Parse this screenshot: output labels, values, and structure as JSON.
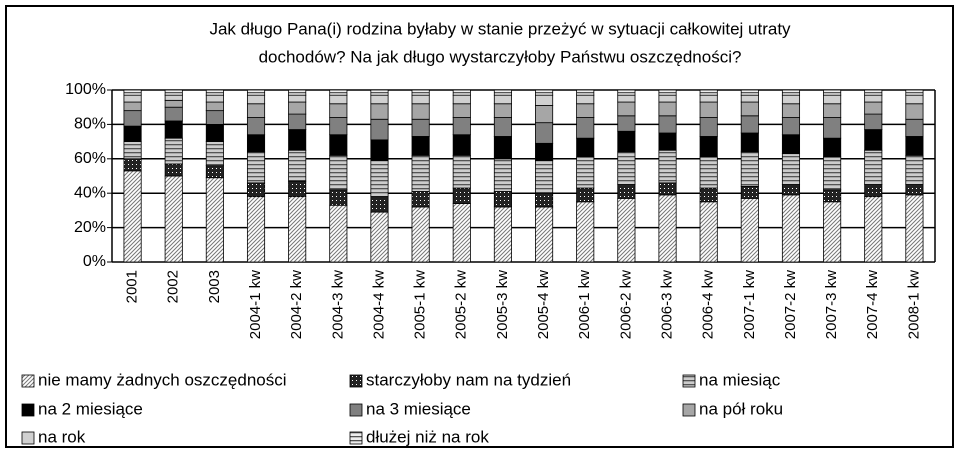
{
  "chart_data": {
    "type": "stacked_bar_100",
    "title": [
      "Jak długo Pana(i) rodzina byłaby w stanie przeżyć w sytuacji całkowitej utraty",
      "dochodów? Na jak długo wystarczyłoby Państwu oszczędności?"
    ],
    "categories": [
      "2001",
      "2002",
      "2003",
      "2004-1 kw",
      "2004-2 kw",
      "2004-3 kw",
      "2004-4 kw",
      "2005-1 kw",
      "2005-2 kw",
      "2005-3 kw",
      "2005-4 kw",
      "2006-1 kw",
      "2006-2 kw",
      "2006-3 kw",
      "2006-4 kw",
      "2007-1 kw",
      "2007-2 kw",
      "2007-3 kw",
      "2007-4 kw",
      "2008-1 kw"
    ],
    "series": [
      {
        "name": "nie mamy żadnych oszczędności",
        "color": "#ffffff",
        "pattern": "diagonal",
        "values": [
          53,
          50,
          49,
          38,
          38,
          33,
          29,
          32,
          34,
          32,
          32,
          35,
          37,
          39,
          35,
          37,
          39,
          35,
          38,
          39
        ]
      },
      {
        "name": "starczyłoby nam na tydzień",
        "color": "#222222",
        "pattern": "checker",
        "values": [
          7,
          7,
          7,
          8,
          9,
          9,
          9,
          9,
          9,
          9,
          8,
          8,
          8,
          7,
          8,
          7,
          6,
          7,
          7,
          6
        ]
      },
      {
        "name": "na miesiąc",
        "color": "#cccccc",
        "pattern": "hstripe",
        "values": [
          10,
          15,
          14,
          18,
          18,
          20,
          21,
          21,
          19,
          19,
          19,
          18,
          19,
          19,
          18,
          20,
          18,
          19,
          20,
          17
        ]
      },
      {
        "name": "na 2 miesiące",
        "color": "#000000",
        "pattern": "solid",
        "values": [
          9,
          10,
          10,
          10,
          12,
          12,
          12,
          11,
          12,
          13,
          10,
          11,
          12,
          10,
          12,
          11,
          11,
          11,
          12,
          11
        ]
      },
      {
        "name": "na 3 miesiące",
        "color": "#808080",
        "pattern": "solid",
        "values": [
          9,
          8,
          8,
          10,
          9,
          10,
          12,
          10,
          10,
          11,
          12,
          12,
          9,
          10,
          11,
          10,
          10,
          12,
          9,
          10
        ]
      },
      {
        "name": "na pół roku",
        "color": "#a6a6a6",
        "pattern": "solid",
        "values": [
          5,
          4,
          5,
          8,
          7,
          8,
          9,
          9,
          8,
          8,
          10,
          8,
          8,
          8,
          9,
          8,
          8,
          8,
          7,
          9
        ]
      },
      {
        "name": "na rok",
        "color": "#d0d0d0",
        "pattern": "solid",
        "values": [
          4,
          3,
          4,
          5,
          4,
          5,
          5,
          5,
          5,
          5,
          6,
          5,
          4,
          4,
          4,
          4,
          5,
          5,
          4,
          5
        ]
      },
      {
        "name": "dłużej niż na rok",
        "color": "#eeeeee",
        "pattern": "hstripe",
        "values": [
          3,
          3,
          3,
          3,
          3,
          3,
          3,
          3,
          3,
          3,
          3,
          3,
          3,
          3,
          3,
          3,
          3,
          3,
          3,
          3
        ]
      }
    ],
    "ylim": [
      0,
      100
    ],
    "yticks": [
      {
        "value": 0,
        "label": "0%"
      },
      {
        "value": 20,
        "label": "20%"
      },
      {
        "value": 40,
        "label": "40%"
      },
      {
        "value": 60,
        "label": "60%"
      },
      {
        "value": 80,
        "label": "80%"
      },
      {
        "value": 100,
        "label": "100%"
      }
    ],
    "grid": true
  }
}
